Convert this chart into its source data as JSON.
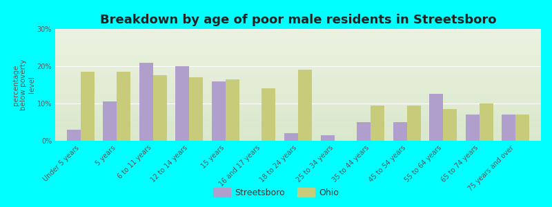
{
  "title": "Breakdown by age of poor male residents in Streetsboro",
  "ylabel": "percentage\nbelow poverty\nlevel",
  "categories": [
    "Under 5 years",
    "5 years",
    "6 to 11 years",
    "12 to 14 years",
    "15 years",
    "16 and 17 years",
    "18 to 24 years",
    "25 to 34 years",
    "35 to 44 years",
    "45 to 54 years",
    "55 to 64 years",
    "65 to 74 years",
    "75 years and over"
  ],
  "streetsboro": [
    3,
    10.5,
    21,
    20,
    16,
    0,
    2,
    1.5,
    5,
    5,
    12.5,
    7,
    7
  ],
  "ohio": [
    18.5,
    18.5,
    17.5,
    17,
    16.5,
    14,
    19,
    0,
    9.5,
    9.5,
    8.5,
    10,
    7
  ],
  "streetsboro_color": "#b09fcc",
  "ohio_color": "#c8cc7a",
  "background_color": "#00ffff",
  "plot_bg_color": "#e8f0d8",
  "ylim": [
    0,
    30
  ],
  "yticks": [
    0,
    10,
    20,
    30
  ],
  "ytick_labels": [
    "0%",
    "10%",
    "20%",
    "30%"
  ],
  "bar_width": 0.38,
  "title_fontsize": 13,
  "axis_label_fontsize": 7.5,
  "tick_label_fontsize": 7,
  "legend_fontsize": 9
}
